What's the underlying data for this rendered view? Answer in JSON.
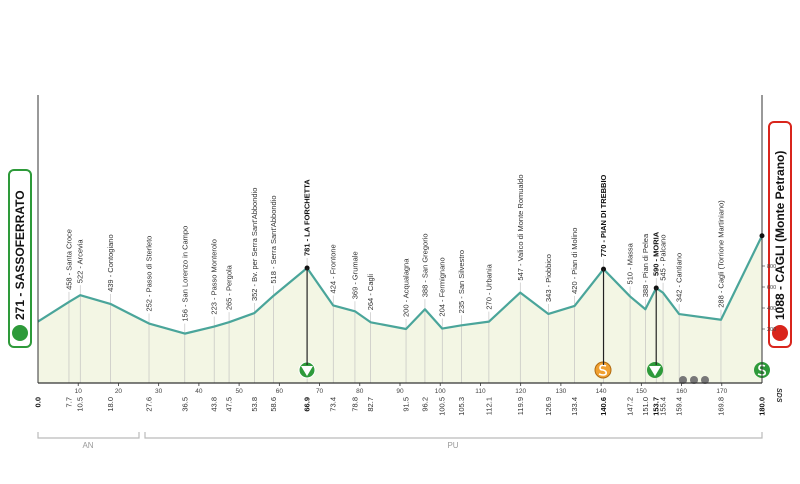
{
  "chart_data": {
    "type": "area",
    "x": [
      0,
      7.7,
      10.5,
      18.0,
      27.6,
      36.5,
      43.8,
      47.5,
      53.8,
      58.6,
      66.9,
      73.4,
      78.8,
      82.7,
      91.5,
      96.2,
      100.5,
      105.3,
      112.1,
      119.9,
      126.9,
      133.4,
      140.6,
      147.2,
      151.0,
      153.7,
      155.4,
      159.4,
      169.8,
      180.0
    ],
    "x_labels": [
      "0.0",
      "7.7",
      "10.5",
      "18.0",
      "27.6",
      "36.5",
      "43.8",
      "47.5",
      "53.8",
      "58.6",
      "66.9",
      "73.4",
      "78.8",
      "82.7",
      "91.5",
      "96.2",
      "100.5",
      "105.3",
      "112.1",
      "119.9",
      "126.9",
      "133.4",
      "140.6",
      "147.2",
      "151.0",
      "153.7",
      "155.4",
      "159.4",
      "169.8",
      "180.0"
    ],
    "values": [
      271,
      458,
      522,
      439,
      252,
      156,
      223,
      265,
      352,
      518,
      781,
      424,
      369,
      264,
      200,
      388,
      204,
      235,
      270,
      547,
      343,
      420,
      770,
      510,
      388,
      590,
      545,
      342,
      288,
      1088
    ],
    "point_labels": [
      "271 - SASSOFERRATO",
      "458 - Santa Croce",
      "522 - Arcevia",
      "439 - Contogiano",
      "252 - Passo di Sterleto",
      "156 - San Lorenzo in Campo",
      "223 - Passo Monterolo",
      "265 - Pergola",
      "352 - Bv. per Serra Sant'Abbondio",
      "518 - Serra Sant'Abbondio",
      "781 - LA FORCHETTA",
      "424 - Frontone",
      "369 - Grumale",
      "264 - Cagli",
      "200 - Acqualagna",
      "388 - San Gregorio",
      "204 - Fermignano",
      "235 - San Silvestro",
      "270 - Urbania",
      "547 - Valico di Monte Romualdo",
      "343 - Piobbico",
      "420 - Pian di Molino",
      "770 - PIAN DI TREBBIO",
      "510 - Massa",
      "388 - Pian di Pelea",
      "590 - MORIA",
      "545 - Palcano",
      "342 - Cantiano",
      "288 - Cagli (Torrione Martiniano)",
      "1088 - CAGLI (Monte Petrano)"
    ],
    "xlim": [
      0,
      180
    ],
    "xticks": [
      10,
      20,
      30,
      40,
      50,
      60,
      70,
      80,
      90,
      100,
      110,
      120,
      130,
      140,
      150,
      160,
      170
    ],
    "ylim": [
      0,
      1100
    ],
    "yticks": [
      200,
      400,
      600,
      800
    ],
    "line_color": "#4aa59a",
    "fill_color": "#f3f6e4",
    "regions": [
      "AN",
      "PU"
    ],
    "finish_marker": "SDS"
  }
}
